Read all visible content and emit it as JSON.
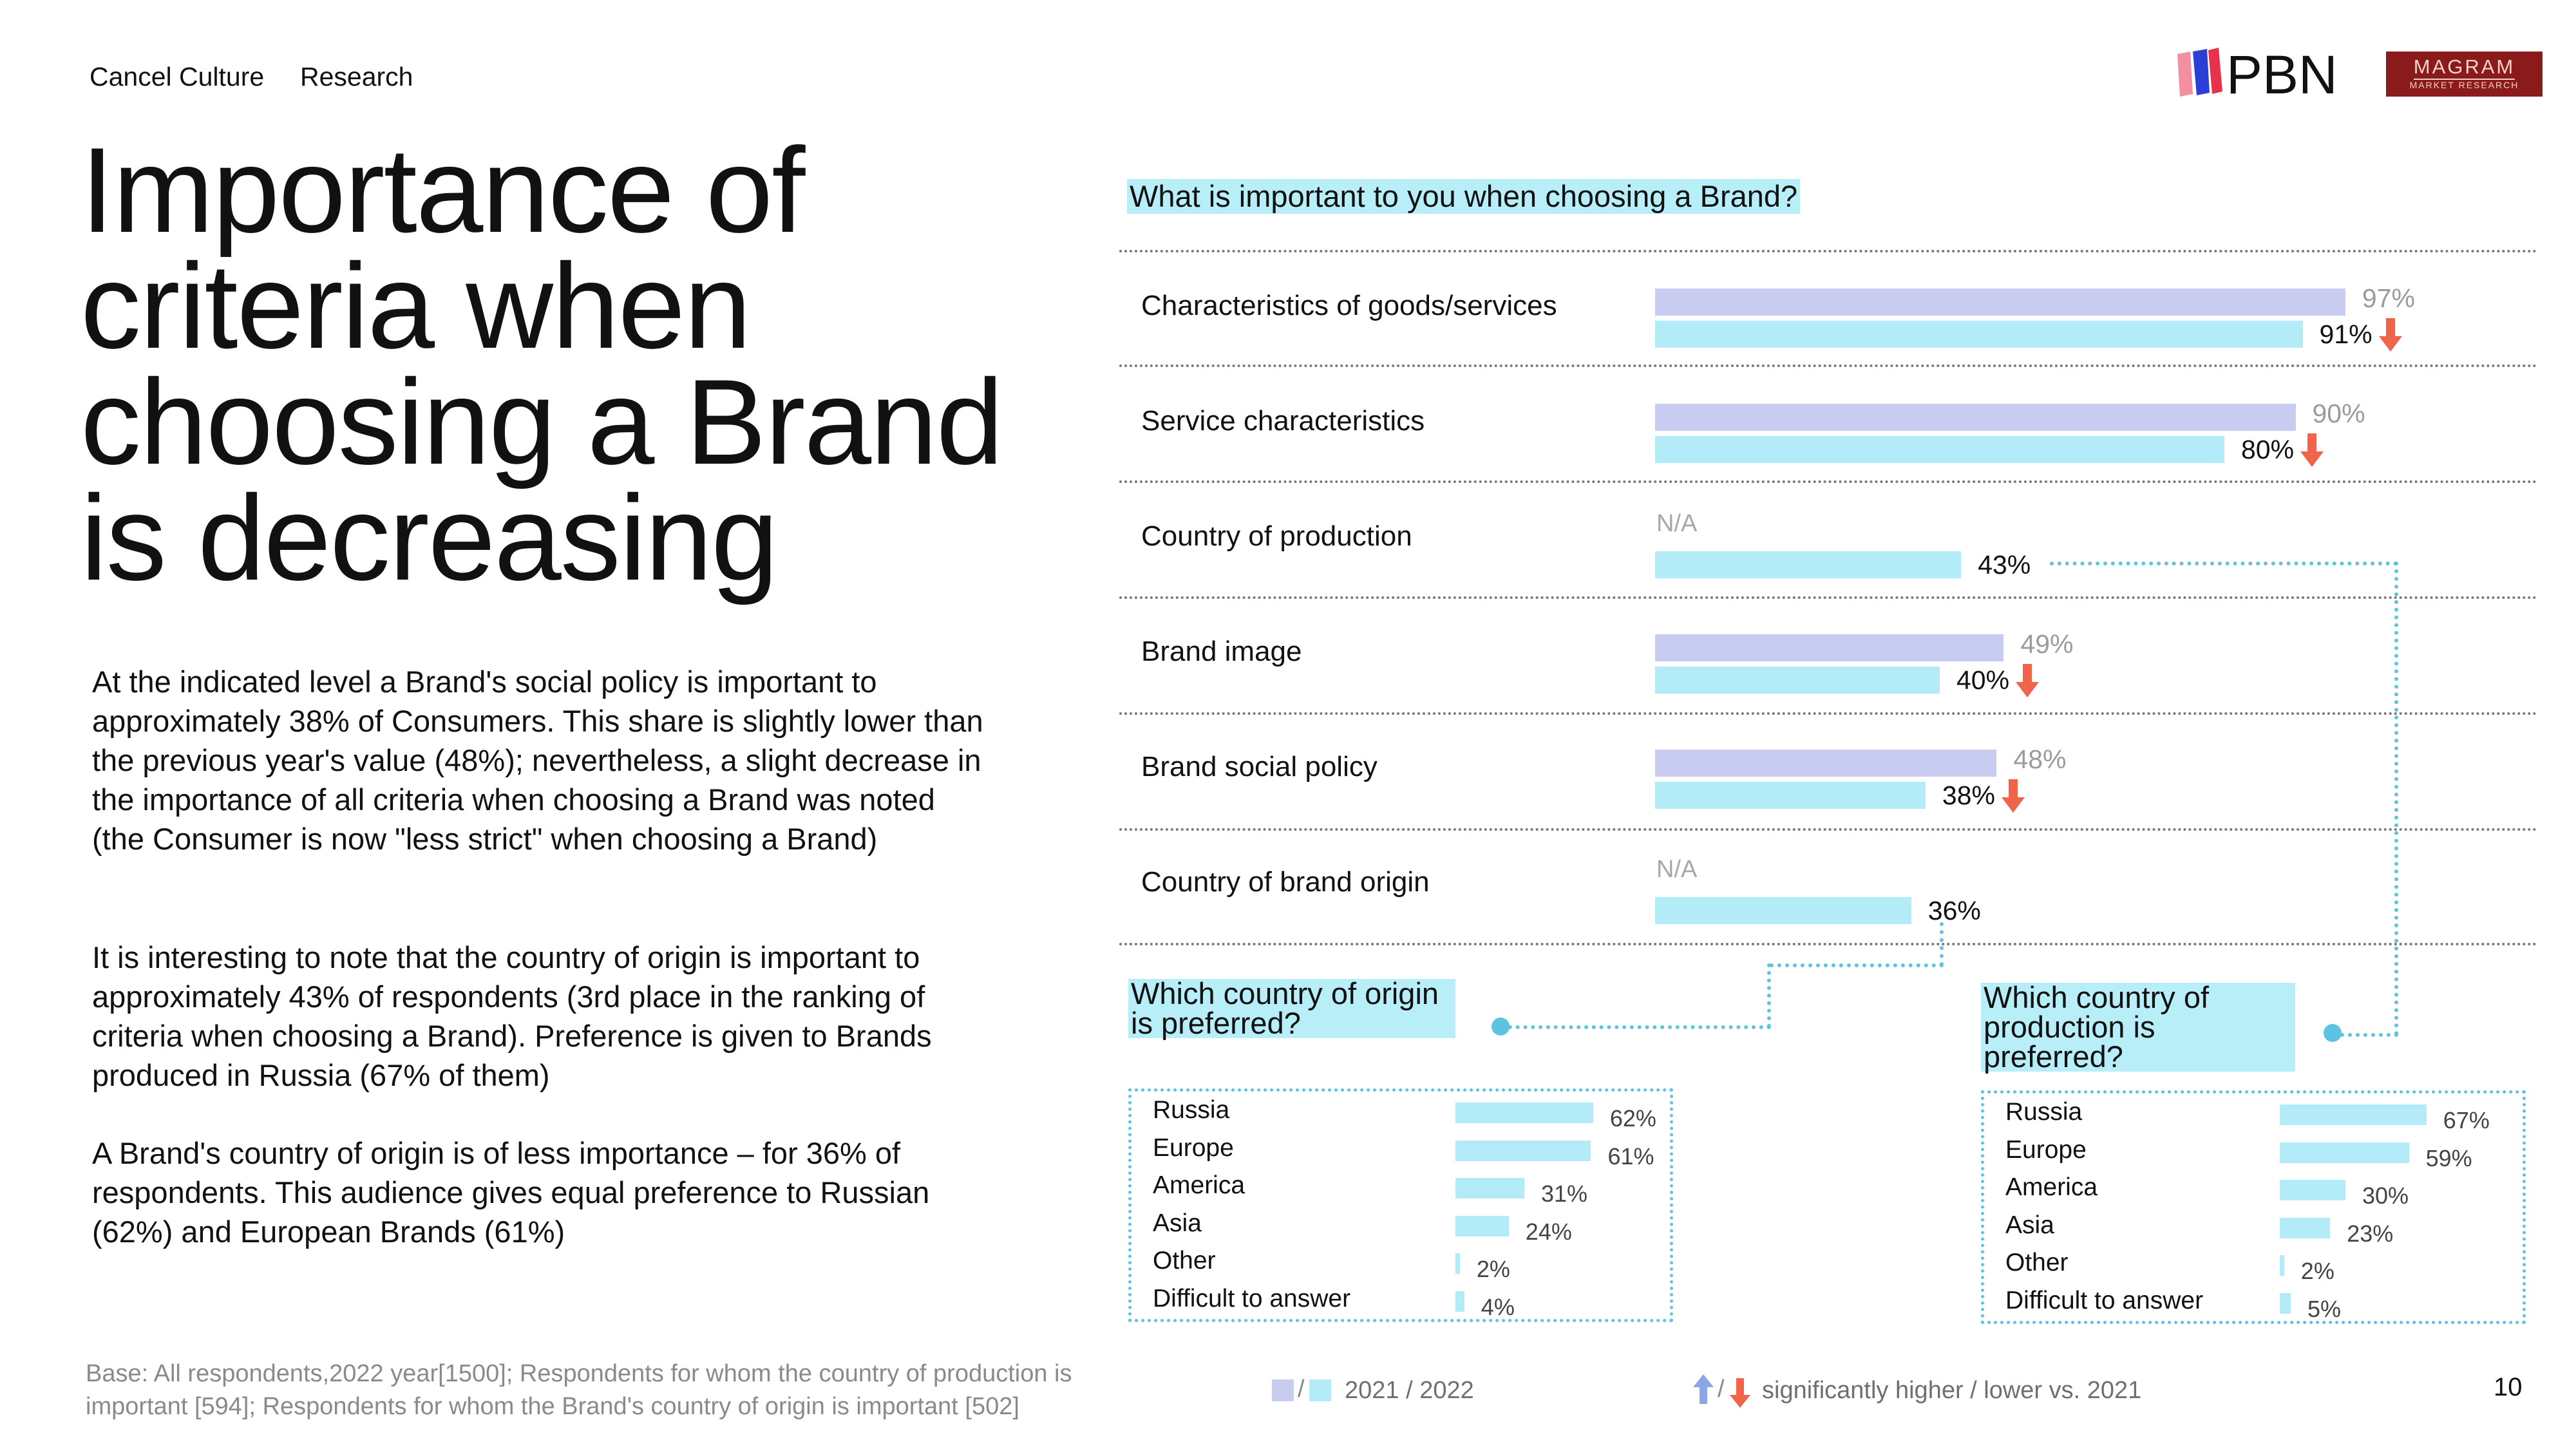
{
  "nav": {
    "item1": "Cancel Culture",
    "item2": "Research"
  },
  "logos": {
    "pbn": "PBN",
    "magram_top": "MAGRAM",
    "magram_bottom": "MARKET RESEARCH"
  },
  "title_lines": [
    "Importance of",
    "criteria when",
    "choosing a Brand",
    "is decreasing"
  ],
  "paragraphs": [
    "At the indicated level a Brand's social policy is important to approximately 38% of Consumers. This share is slightly lower than the previous year's value (48%); nevertheless, a slight decrease in the importance of all criteria when choosing a Brand was noted (the Consumer is now \"less strict\" when choosing a Brand)",
    "It is interesting to note that the country of origin is important to approximately 43% of respondents (3rd place in the ranking of criteria when choosing a Brand). Preference is given to Brands produced in Russia (67% of them)",
    "A Brand's country of origin is of less importance – for 36% of respondents. This audience gives equal preference to Russian (62%) and European Brands (61%)"
  ],
  "footnote": "Base: All respondents,2022 year[1500]; Respondents for whom the country of production is important [594]; Respondents for whom the Brand's country of origin is important [502]",
  "legend": {
    "years": "2021 / 2022",
    "significance": "significantly higher / lower vs. 2021"
  },
  "page_number": "10",
  "colors": {
    "prev": "#c8ccf0",
    "cur": "#b3ebf8",
    "down_arrow": "#f0644a",
    "up_arrow": "#8aa6e6",
    "dotted": "#5cc3e0"
  },
  "chart_data": [
    {
      "type": "bar",
      "title": "What is important to you when choosing a Brand?",
      "categories": [
        "Characteristics of goods/services",
        "Service characteristics",
        "Country of production",
        "Brand image",
        "Brand social policy",
        "Country of brand origin"
      ],
      "series": [
        {
          "name": "2021",
          "values": [
            97,
            90,
            null,
            49,
            48,
            null
          ]
        },
        {
          "name": "2022",
          "values": [
            91,
            80,
            43,
            40,
            38,
            36
          ]
        }
      ],
      "labels_2021": [
        "97%",
        "90%",
        "N/A",
        "49%",
        "48%",
        "N/A"
      ],
      "labels_2022": [
        "91%",
        "80%",
        "43%",
        "40%",
        "38%",
        "36%"
      ],
      "significantly_lower": [
        true,
        true,
        false,
        true,
        true,
        false
      ],
      "xlim": [
        0,
        100
      ]
    },
    {
      "type": "bar",
      "title": "Which country of origin is preferred?",
      "categories": [
        "Russia",
        "Europe",
        "America",
        "Asia",
        "Other",
        "Difficult to answer"
      ],
      "values": [
        62,
        61,
        31,
        24,
        2,
        4
      ],
      "labels": [
        "62%",
        "61%",
        "31%",
        "24%",
        "2%",
        "4%"
      ]
    },
    {
      "type": "bar",
      "title": "Which country of production is preferred?",
      "categories": [
        "Russia",
        "Europe",
        "America",
        "Asia",
        "Other",
        "Difficult to answer"
      ],
      "values": [
        67,
        59,
        30,
        23,
        2,
        5
      ],
      "labels": [
        "67%",
        "59%",
        "30%",
        "23%",
        "2%",
        "5%"
      ]
    }
  ]
}
